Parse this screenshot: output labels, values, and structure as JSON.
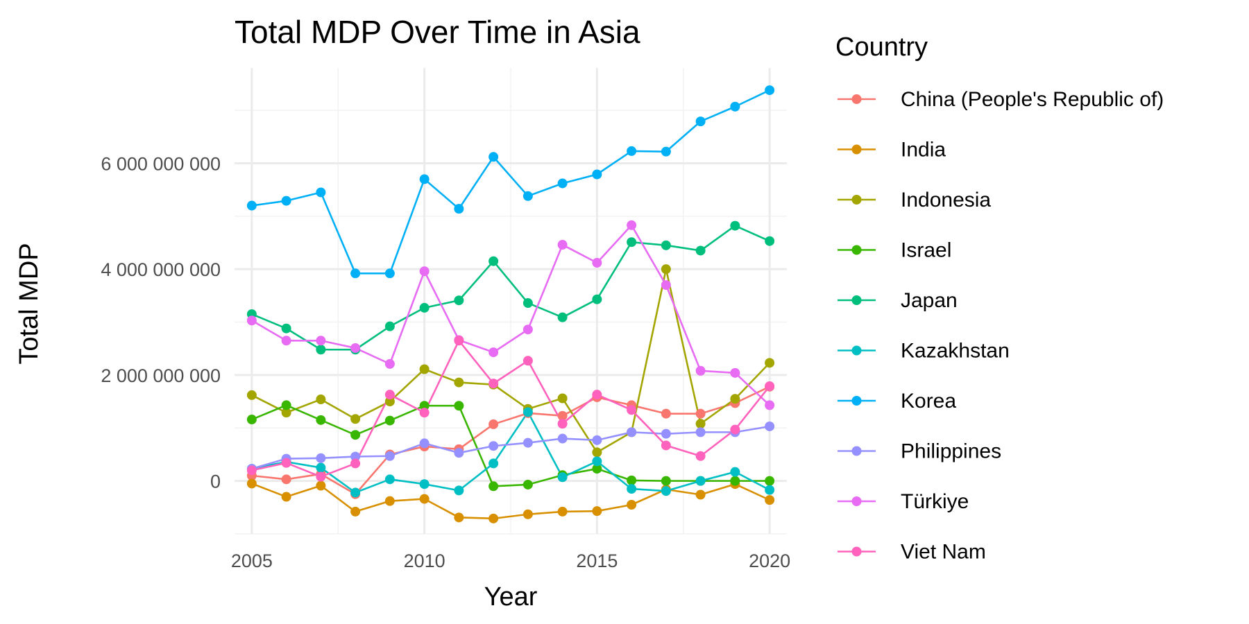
{
  "chart_data": {
    "type": "line",
    "title": "Total MDP Over Time in Asia",
    "xlabel": "Year",
    "ylabel": "Total MDP",
    "legend_title": "Country",
    "legend_position": "right",
    "grid": true,
    "xlim": [
      2004.5,
      2020.5
    ],
    "ylim": [
      -1000000000,
      7800000000
    ],
    "x_ticks": [
      2005,
      2010,
      2015,
      2020
    ],
    "x_minor_ticks": [
      2007.5,
      2012.5,
      2017.5
    ],
    "y_ticks": [
      0,
      2000000000,
      4000000000,
      6000000000
    ],
    "y_tick_labels": [
      "0",
      "2 000 000 000",
      "4 000 000 000",
      "6 000 000 000"
    ],
    "y_minor_ticks": [
      -1000000000,
      1000000000,
      3000000000,
      5000000000,
      7000000000
    ],
    "x": [
      2005,
      2006,
      2007,
      2008,
      2009,
      2010,
      2011,
      2012,
      2013,
      2014,
      2015,
      2016,
      2017,
      2018,
      2019,
      2020
    ],
    "series": [
      {
        "name": "China (People's Republic of)",
        "color": "#F8766D",
        "values": [
          100000000,
          30000000,
          130000000,
          -250000000,
          500000000,
          650000000,
          600000000,
          1070000000,
          1280000000,
          1230000000,
          1580000000,
          1430000000,
          1270000000,
          1270000000,
          1470000000,
          1780000000
        ]
      },
      {
        "name": "India",
        "color": "#D89000",
        "values": [
          -50000000,
          -300000000,
          -90000000,
          -580000000,
          -380000000,
          -340000000,
          -690000000,
          -710000000,
          -630000000,
          -580000000,
          -570000000,
          -450000000,
          -160000000,
          -260000000,
          -60000000,
          -360000000
        ]
      },
      {
        "name": "Indonesia",
        "color": "#A3A500",
        "values": [
          1620000000,
          1290000000,
          1540000000,
          1170000000,
          1500000000,
          2110000000,
          1860000000,
          1820000000,
          1360000000,
          1560000000,
          540000000,
          920000000,
          4000000000,
          1080000000,
          1550000000,
          2230000000
        ]
      },
      {
        "name": "Israel",
        "color": "#39B600",
        "values": [
          1160000000,
          1430000000,
          1150000000,
          870000000,
          1140000000,
          1420000000,
          1420000000,
          -100000000,
          -70000000,
          110000000,
          230000000,
          10000000,
          0,
          0,
          0,
          0
        ]
      },
      {
        "name": "Japan",
        "color": "#00BF7D",
        "values": [
          3150000000,
          2880000000,
          2480000000,
          2480000000,
          2920000000,
          3270000000,
          3410000000,
          4150000000,
          3360000000,
          3090000000,
          3430000000,
          4510000000,
          4450000000,
          4350000000,
          4820000000,
          4530000000
        ]
      },
      {
        "name": "Kazakhstan",
        "color": "#00BFC4",
        "values": [
          230000000,
          360000000,
          250000000,
          -220000000,
          30000000,
          -60000000,
          -180000000,
          330000000,
          1300000000,
          70000000,
          370000000,
          -150000000,
          -190000000,
          0,
          170000000,
          -170000000
        ]
      },
      {
        "name": "Korea",
        "color": "#00B0F6",
        "values": [
          5200000000,
          5290000000,
          5450000000,
          3920000000,
          3920000000,
          5700000000,
          5140000000,
          6120000000,
          5380000000,
          5620000000,
          5790000000,
          6230000000,
          6220000000,
          6790000000,
          7070000000,
          7380000000
        ]
      },
      {
        "name": "Philippines",
        "color": "#9590FF",
        "values": [
          230000000,
          420000000,
          430000000,
          460000000,
          470000000,
          710000000,
          530000000,
          660000000,
          720000000,
          800000000,
          770000000,
          920000000,
          890000000,
          920000000,
          920000000,
          1030000000
        ]
      },
      {
        "name": "Türkiye",
        "color": "#E76BF3",
        "values": [
          3030000000,
          2650000000,
          2650000000,
          2510000000,
          2210000000,
          3960000000,
          2660000000,
          2430000000,
          2860000000,
          4460000000,
          4120000000,
          4830000000,
          3700000000,
          2080000000,
          2040000000,
          1430000000
        ]
      },
      {
        "name": "Viet Nam",
        "color": "#FF62BC",
        "values": [
          200000000,
          340000000,
          80000000,
          330000000,
          1630000000,
          1290000000,
          2650000000,
          1840000000,
          2270000000,
          1080000000,
          1630000000,
          1340000000,
          670000000,
          470000000,
          970000000,
          1790000000
        ]
      }
    ]
  }
}
